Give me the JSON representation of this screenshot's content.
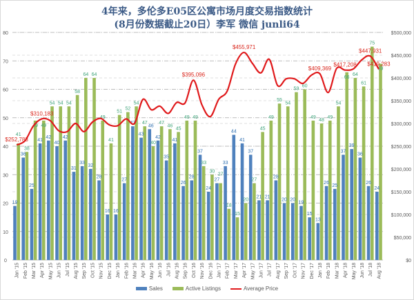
{
  "chart_data": {
    "type": "bar+line",
    "title": "4年来，多伦多E05区公寓市场月度交易指数统计",
    "subtitle": "(8月份数据截止20日）李军  微信 junli64",
    "categories": [
      "Jan '15",
      "Feb '15",
      "Mar '15",
      "Apr '15",
      "May '15",
      "Jun '15",
      "Jul '15",
      "Aug '15",
      "Sep '15",
      "Oct '15",
      "Nov '15",
      "Dec '15",
      "Jan '16",
      "Feb '16",
      "Mar '16",
      "Apr '16",
      "May '16",
      "Jun '16",
      "Jul '16",
      "Aug '16",
      "Sep '16",
      "Oct '16",
      "Nov '16",
      "Dec '16",
      "Jan '17",
      "Feb '17",
      "Mar '17",
      "Apr '17",
      "May '17",
      "Jun '17",
      "Jul '17",
      "Aug '17",
      "Sep '17",
      "Oct '17",
      "Nov '17",
      "Dec '17",
      "Jan '18",
      "Feb '18",
      "Mar '18",
      "Apr '18",
      "May '18",
      "Jun '18",
      "Jul '18",
      "Aug '18"
    ],
    "series": [
      {
        "name": "Sales",
        "axis": "left",
        "type": "bar",
        "color": "#4f81bd",
        "values": [
          19,
          36,
          25,
          41,
          42,
          40,
          42,
          31,
          33,
          32,
          28,
          16,
          16,
          27,
          47,
          43,
          46,
          42,
          35,
          41,
          26,
          28,
          37,
          24,
          27,
          33,
          44,
          41,
          37,
          21,
          21,
          28,
          20,
          20,
          19,
          15,
          13,
          26,
          25,
          37,
          39,
          36,
          26,
          24
        ]
      },
      {
        "name": "Active Listings",
        "axis": "left",
        "type": "bar",
        "color": "#9bbb59",
        "values": [
          41,
          38,
          49,
          49,
          54,
          54,
          54,
          58,
          64,
          64,
          49,
          41,
          51,
          52,
          54,
          47,
          40,
          47,
          46,
          45,
          49,
          49,
          33,
          30,
          27,
          18,
          15,
          20,
          27,
          45,
          49,
          55,
          54,
          59,
          60,
          49,
          48,
          49,
          54,
          66,
          64,
          61,
          75,
          69
        ]
      },
      {
        "name": "Average Price",
        "axis": "right",
        "type": "line",
        "color": "#e0191b",
        "values": [
          252783,
          262000,
          295000,
          310183,
          306000,
          284000,
          282000,
          300000,
          282000,
          303000,
          311000,
          297000,
          295000,
          310000,
          300000,
          353000,
          330000,
          338000,
          322000,
          346000,
          345000,
          395096,
          341000,
          315000,
          353000,
          371000,
          431000,
          455971,
          432000,
          411000,
          441000,
          383000,
          398000,
          398000,
          388000,
          406000,
          409369,
          368000,
          421000,
          417208,
          420000,
          440000,
          447931,
          419283
        ]
      }
    ],
    "price_labels": [
      {
        "index": 0,
        "text": "$252,783"
      },
      {
        "index": 3,
        "text": "$310,183"
      },
      {
        "index": 21,
        "text": "$395,096"
      },
      {
        "index": 27,
        "text": "$455,971"
      },
      {
        "index": 36,
        "text": "$409,369"
      },
      {
        "index": 39,
        "text": "$417,208"
      },
      {
        "index": 42,
        "text": "$447,931"
      },
      {
        "index": 43,
        "text": "$419,283"
      }
    ],
    "left_axis": {
      "ylim": [
        0,
        80
      ],
      "ticks": [
        "0",
        "10",
        "20",
        "30",
        "40",
        "50",
        "60",
        "70",
        "80"
      ]
    },
    "right_axis": {
      "ylim": [
        0,
        500000
      ],
      "ticks": [
        "$0",
        "$50,000",
        "$100,000",
        "$150,000",
        "$200,000",
        "$250,000",
        "$300,000",
        "$350,000",
        "$400,000",
        "$450,000",
        "$500,000"
      ]
    },
    "grid": true,
    "legend": {
      "placement": "bottom",
      "entries": [
        "Sales",
        "Active Listings",
        "Average Price"
      ]
    }
  }
}
